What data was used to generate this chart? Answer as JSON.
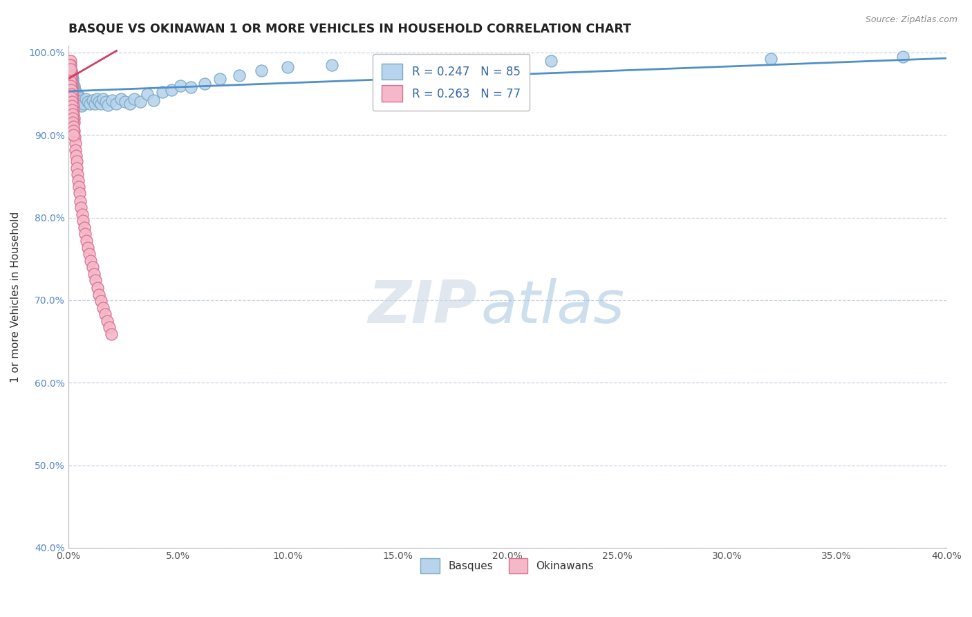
{
  "title": "BASQUE VS OKINAWAN 1 OR MORE VEHICLES IN HOUSEHOLD CORRELATION CHART",
  "source": "Source: ZipAtlas.com",
  "ylabel": "1 or more Vehicles in Household",
  "xlim": [
    0.0,
    0.4
  ],
  "ylim": [
    0.4,
    1.008
  ],
  "xticks": [
    0.0,
    0.05,
    0.1,
    0.15,
    0.2,
    0.25,
    0.3,
    0.35,
    0.4
  ],
  "yticks": [
    0.4,
    0.5,
    0.6,
    0.7,
    0.8,
    0.9,
    1.0
  ],
  "xtick_labels": [
    "0.0%",
    "5.0%",
    "10.0%",
    "15.0%",
    "20.0%",
    "25.0%",
    "30.0%",
    "35.0%",
    "40.0%"
  ],
  "ytick_labels": [
    "40.0%",
    "50.0%",
    "60.0%",
    "70.0%",
    "80.0%",
    "90.0%",
    "100.0%"
  ],
  "basque_color": "#b8d4ec",
  "basque_edge_color": "#7aaac8",
  "okinawan_color": "#f5b8c8",
  "okinawan_edge_color": "#d87090",
  "basque_line_color": "#5090c8",
  "okinawan_line_color": "#d04060",
  "R_basque": 0.247,
  "N_basque": 85,
  "R_okinawan": 0.263,
  "N_okinawan": 77,
  "legend_labels": [
    "Basques",
    "Okinawans"
  ],
  "watermark_zip": "ZIP",
  "watermark_atlas": "atlas",
  "background_color": "#ffffff",
  "grid_color": "#c8d4e0",
  "title_color": "#222222",
  "basque_x": [
    0.0008,
    0.0009,
    0.001,
    0.001,
    0.0011,
    0.0011,
    0.0012,
    0.0012,
    0.0013,
    0.0013,
    0.0014,
    0.0014,
    0.0015,
    0.0015,
    0.0015,
    0.0016,
    0.0016,
    0.0017,
    0.0017,
    0.0018,
    0.0018,
    0.0019,
    0.0019,
    0.002,
    0.002,
    0.0021,
    0.0022,
    0.0023,
    0.0024,
    0.0025,
    0.0026,
    0.0027,
    0.0028,
    0.0029,
    0.003,
    0.0031,
    0.0032,
    0.0033,
    0.0035,
    0.0036,
    0.0038,
    0.004,
    0.0042,
    0.0044,
    0.0046,
    0.0048,
    0.005,
    0.0055,
    0.006,
    0.0065,
    0.007,
    0.008,
    0.009,
    0.01,
    0.011,
    0.012,
    0.013,
    0.014,
    0.015,
    0.016,
    0.017,
    0.018,
    0.02,
    0.022,
    0.024,
    0.026,
    0.028,
    0.03,
    0.033,
    0.036,
    0.039,
    0.043,
    0.047,
    0.051,
    0.056,
    0.062,
    0.069,
    0.078,
    0.088,
    0.1,
    0.12,
    0.16,
    0.22,
    0.32,
    0.38
  ],
  "basque_y": [
    0.985,
    0.98,
    0.975,
    0.97,
    0.975,
    0.968,
    0.98,
    0.972,
    0.978,
    0.965,
    0.972,
    0.96,
    0.975,
    0.968,
    0.958,
    0.975,
    0.965,
    0.97,
    0.96,
    0.972,
    0.962,
    0.968,
    0.958,
    0.965,
    0.955,
    0.962,
    0.958,
    0.955,
    0.96,
    0.952,
    0.96,
    0.95,
    0.958,
    0.948,
    0.955,
    0.945,
    0.952,
    0.942,
    0.948,
    0.938,
    0.945,
    0.94,
    0.95,
    0.942,
    0.948,
    0.938,
    0.945,
    0.94,
    0.935,
    0.942,
    0.938,
    0.944,
    0.94,
    0.938,
    0.942,
    0.938,
    0.944,
    0.94,
    0.938,
    0.944,
    0.94,
    0.936,
    0.942,
    0.938,
    0.944,
    0.94,
    0.938,
    0.944,
    0.94,
    0.95,
    0.942,
    0.952,
    0.955,
    0.96,
    0.958,
    0.962,
    0.968,
    0.972,
    0.978,
    0.982,
    0.985,
    0.988,
    0.99,
    0.992,
    0.995
  ],
  "okinawan_x": [
    0.0008,
    0.0009,
    0.001,
    0.001,
    0.0011,
    0.0011,
    0.0012,
    0.0012,
    0.0013,
    0.0013,
    0.0014,
    0.0015,
    0.0015,
    0.0016,
    0.0017,
    0.0017,
    0.0018,
    0.0019,
    0.002,
    0.0021,
    0.0022,
    0.0023,
    0.0024,
    0.0025,
    0.0026,
    0.0028,
    0.003,
    0.0032,
    0.0034,
    0.0036,
    0.0038,
    0.004,
    0.0042,
    0.0045,
    0.0048,
    0.0051,
    0.0055,
    0.0059,
    0.0063,
    0.0068,
    0.0073,
    0.0078,
    0.0084,
    0.009,
    0.0096,
    0.0103,
    0.011,
    0.0117,
    0.0125,
    0.0133,
    0.0141,
    0.015,
    0.0159,
    0.0168,
    0.0178,
    0.0188,
    0.0198,
    0.0009,
    0.0009,
    0.001,
    0.001,
    0.0011,
    0.0012,
    0.0013,
    0.0014,
    0.0015,
    0.0016,
    0.0017,
    0.0018,
    0.0019,
    0.002,
    0.0021,
    0.0022,
    0.0023,
    0.0024
  ],
  "okinawan_y": [
    0.98,
    0.975,
    0.99,
    0.972,
    0.985,
    0.968,
    0.978,
    0.965,
    0.975,
    0.96,
    0.972,
    0.968,
    0.955,
    0.962,
    0.958,
    0.948,
    0.955,
    0.95,
    0.945,
    0.94,
    0.935,
    0.93,
    0.925,
    0.92,
    0.915,
    0.905,
    0.898,
    0.89,
    0.882,
    0.875,
    0.868,
    0.86,
    0.852,
    0.845,
    0.837,
    0.83,
    0.82,
    0.812,
    0.804,
    0.796,
    0.788,
    0.78,
    0.772,
    0.764,
    0.756,
    0.748,
    0.74,
    0.732,
    0.724,
    0.715,
    0.707,
    0.699,
    0.691,
    0.683,
    0.675,
    0.667,
    0.659,
    0.975,
    0.985,
    0.97,
    0.98,
    0.965,
    0.96,
    0.955,
    0.95,
    0.945,
    0.94,
    0.935,
    0.93,
    0.925,
    0.92,
    0.915,
    0.91,
    0.905,
    0.9
  ]
}
